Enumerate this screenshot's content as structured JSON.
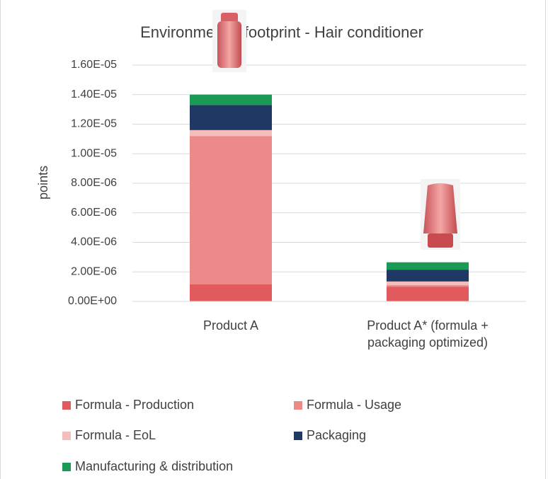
{
  "chart_data": {
    "type": "stacked_bar",
    "title": "Environmental footprint - Hair conditioner",
    "y_label": "points",
    "categories": [
      "Product A",
      "Product A* (formula + packaging optimized)"
    ],
    "series": [
      {
        "name": "Formula - Production",
        "color": "#e05a5e",
        "values": [
          1.15e-06,
          1e-06
        ]
      },
      {
        "name": "Formula - Usage",
        "color": "#ec8a8a",
        "values": [
          1.005e-05,
          1e-07
        ]
      },
      {
        "name": "Formula - EoL",
        "color": "#f5bcbc",
        "values": [
          4e-07,
          2.5e-07
        ]
      },
      {
        "name": "Packaging",
        "color": "#1f3864",
        "values": [
          1.7e-06,
          8e-07
        ]
      },
      {
        "name": "Manufacturing & distribution",
        "color": "#1a9a55",
        "values": [
          7e-07,
          5e-07
        ]
      }
    ],
    "ylim": [
      0,
      1.6e-05
    ],
    "yticks": [
      {
        "value": 0,
        "label": "0.00E+00"
      },
      {
        "value": 2e-06,
        "label": "2.00E-06"
      },
      {
        "value": 4e-06,
        "label": "4.00E-06"
      },
      {
        "value": 6e-06,
        "label": "6.00E-06"
      },
      {
        "value": 8e-06,
        "label": "8.00E-06"
      },
      {
        "value": 1e-05,
        "label": "1.00E-05"
      },
      {
        "value": 1.2e-05,
        "label": "1.20E-05"
      },
      {
        "value": 1.4e-05,
        "label": "1.40E-05"
      },
      {
        "value": 1.6e-05,
        "label": "1.60E-05"
      }
    ],
    "grid": true,
    "legend": "bottom"
  }
}
